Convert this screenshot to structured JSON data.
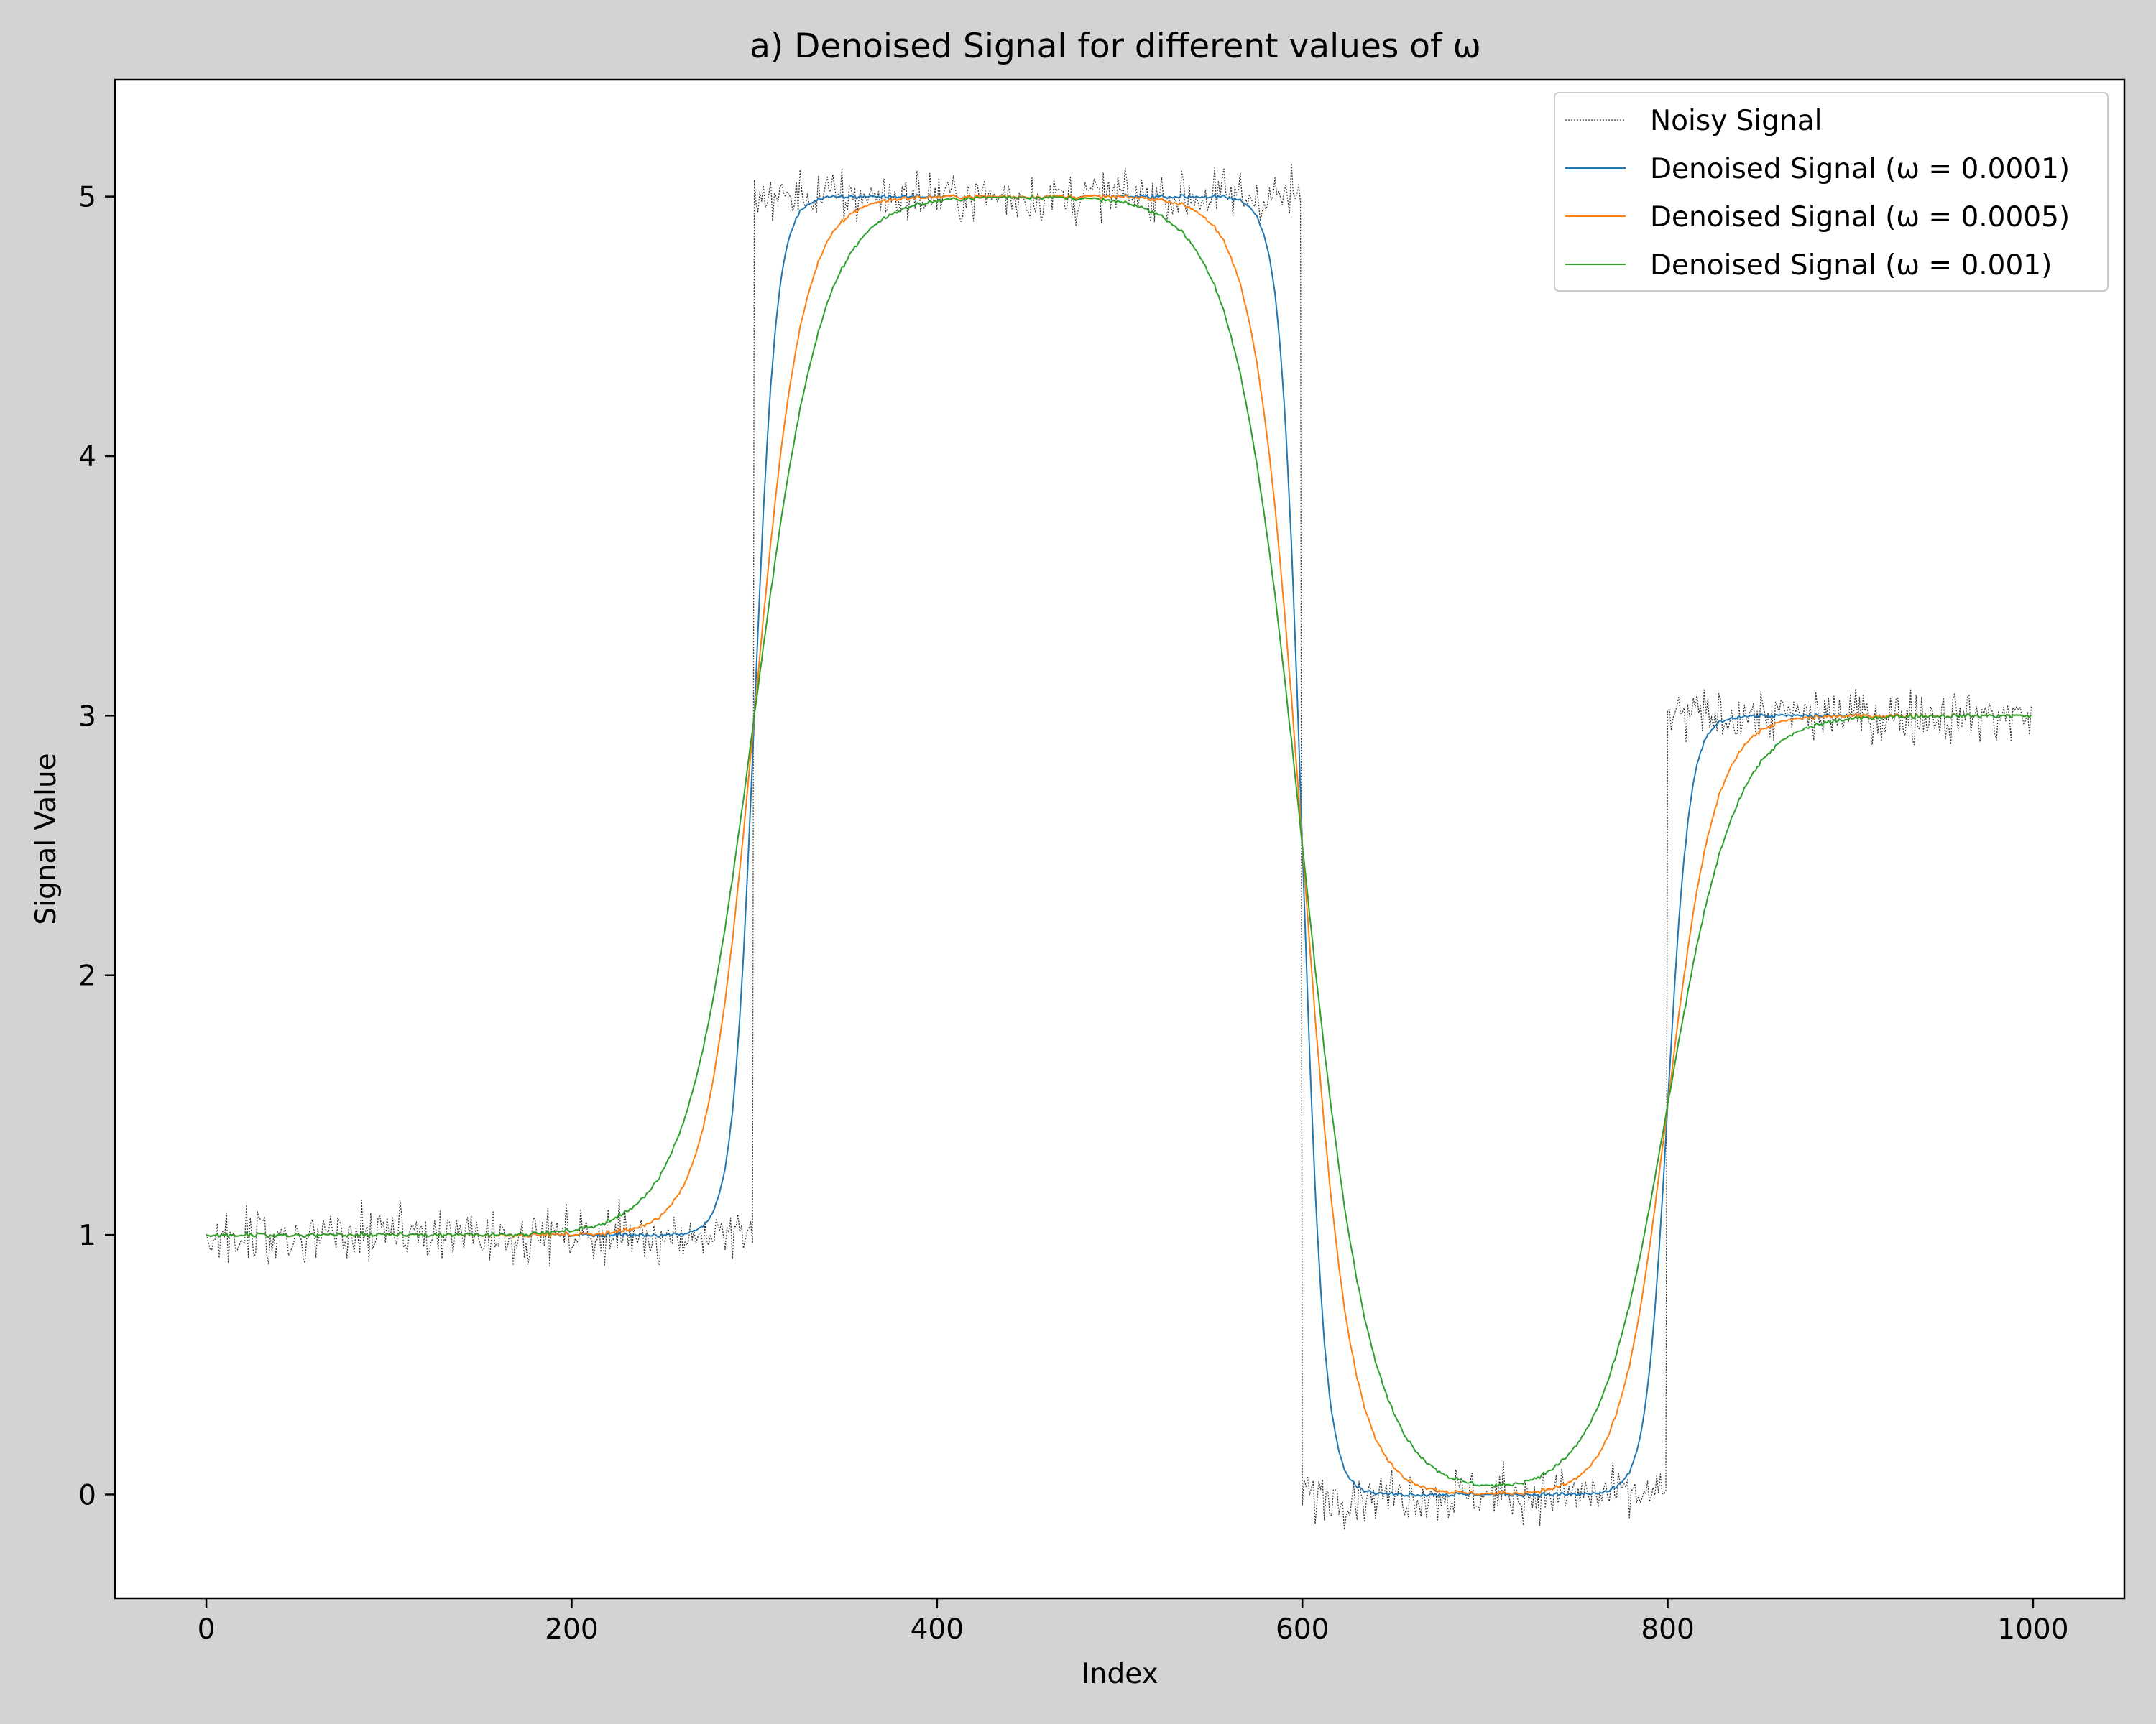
{
  "chart_data": {
    "type": "line",
    "title": "a) Denoised Signal for different values of ω",
    "xlabel": "Index",
    "ylabel": "Signal Value",
    "xlim": [
      -50,
      1050
    ],
    "ylim": [
      -0.4,
      5.45
    ],
    "xticks": [
      0,
      200,
      400,
      600,
      800,
      1000
    ],
    "yticks": [
      0,
      1,
      2,
      3,
      4,
      5
    ],
    "grid": false,
    "legend_position": "top-right",
    "true_levels": [
      {
        "from": 0,
        "to": 300,
        "value": 1
      },
      {
        "from": 300,
        "to": 600,
        "value": 5
      },
      {
        "from": 600,
        "to": 800,
        "value": 0
      },
      {
        "from": 800,
        "to": 1000,
        "value": 3
      }
    ],
    "noise_std": 0.05,
    "series": [
      {
        "name": "Noisy Signal",
        "color": "#333333",
        "style": "dotted",
        "width": 1.3
      },
      {
        "name": "Denoised Signal (ω = 0.0001)",
        "color": "#1f77b4",
        "style": "solid",
        "width": 2,
        "omega": 0.0001,
        "tau": 12
      },
      {
        "name": "Denoised Signal (ω = 0.0005)",
        "color": "#ff7f0e",
        "style": "solid",
        "width": 2,
        "omega": 0.0005,
        "tau": 26
      },
      {
        "name": "Denoised Signal (ω = 0.001)",
        "color": "#2ca02c",
        "style": "solid",
        "width": 2,
        "omega": 0.001,
        "tau": 37
      }
    ]
  }
}
